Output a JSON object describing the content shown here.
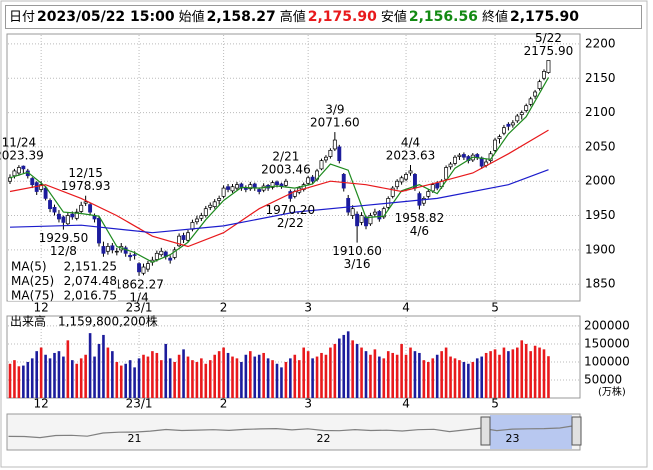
{
  "header": {
    "fields": [
      {
        "label": "日付",
        "value": "2023/05/22 15:00",
        "color": "#000000"
      },
      {
        "label": "始値",
        "value": "2,158.27",
        "color": "#000000"
      },
      {
        "label": "高値",
        "value": "2,175.90",
        "color": "#e8191c"
      },
      {
        "label": "安値",
        "value": "2,156.56",
        "color": "#138a13"
      },
      {
        "label": "終値",
        "value": "2,175.90",
        "color": "#000000"
      }
    ]
  },
  "chart_data": {
    "type": "candlestick",
    "categories": [
      null,
      null,
      null,
      null,
      null,
      null,
      null,
      "12",
      null,
      null,
      null,
      null,
      null,
      null,
      null,
      null,
      null,
      null,
      null,
      null,
      null,
      null,
      null,
      null,
      null,
      null,
      null,
      null,
      null,
      "23/1",
      null,
      null,
      null,
      null,
      null,
      null,
      null,
      null,
      null,
      null,
      null,
      null,
      null,
      null,
      null,
      null,
      null,
      null,
      "2",
      null,
      null,
      null,
      null,
      null,
      null,
      null,
      null,
      null,
      null,
      null,
      null,
      null,
      null,
      null,
      null,
      null,
      null,
      "3",
      null,
      null,
      null,
      null,
      null,
      null,
      null,
      null,
      null,
      null,
      null,
      null,
      null,
      null,
      null,
      null,
      null,
      null,
      null,
      null,
      null,
      "4",
      null,
      null,
      null,
      null,
      null,
      null,
      null,
      null,
      null,
      null,
      null,
      null,
      null,
      null,
      null,
      null,
      null,
      null,
      null,
      "5",
      null,
      null,
      null,
      null,
      null,
      null,
      null,
      null,
      null,
      null,
      null,
      null
    ],
    "open": [
      2000,
      2008,
      2012,
      2022,
      2015,
      2004,
      1998,
      1988,
      1990,
      1972,
      1962,
      1952,
      1948,
      1938,
      1952,
      1946,
      1956,
      1968,
      1966,
      1950,
      1946,
      1905,
      1898,
      1906,
      1897,
      1900,
      1903,
      1892,
      1893,
      1880,
      1866,
      1872,
      1882,
      1886,
      1893,
      1897,
      1888,
      1889,
      1906,
      1921,
      1914,
      1930,
      1941,
      1946,
      1950,
      1962,
      1963,
      1972,
      1978,
      1992,
      1986,
      1990,
      1996,
      1991,
      1989,
      1996,
      1988,
      1987,
      1994,
      1991,
      1999,
      1996,
      1994,
      1985,
      1978,
      1984,
      1988,
      1997,
      2006,
      2003,
      2018,
      2031,
      2036,
      2047,
      2050,
      2010,
      1975,
      1950,
      1952,
      1940,
      1948,
      1938,
      1952,
      1956,
      1948,
      1962,
      1978,
      1992,
      1999,
      2003,
      2012,
      2010,
      1982,
      1968,
      1978,
      1986,
      1997,
      1992,
      2003,
      2021,
      2026,
      2036,
      2039,
      2036,
      2031,
      2039,
      2034,
      2023,
      2030,
      2045,
      2062,
      2070,
      2083,
      2082,
      2088,
      2097,
      2103,
      2112,
      2124,
      2135,
      2150,
      2158.27
    ],
    "high": [
      2010,
      2018,
      2023.39,
      2023,
      2018,
      2006,
      2000,
      2000,
      1993,
      1975,
      1966,
      1958,
      1950,
      1955,
      1956,
      1960,
      1970,
      1978.93,
      1968,
      1953,
      1950,
      1912,
      1910,
      1910,
      1903,
      1910,
      1906,
      1896,
      1898,
      1882,
      1880,
      1884,
      1890,
      1899,
      1903,
      1899,
      1892,
      1904,
      1924,
      1925,
      1929,
      1944,
      1950,
      1954,
      1964,
      1969,
      1974,
      1979,
      1994,
      1996,
      1996,
      1999,
      1998,
      1994,
      1999,
      1998,
      1991,
      1997,
      1996,
      2001,
      2001,
      1998,
      2003.46,
      1988,
      1988,
      1993,
      1998,
      2008,
      2009,
      2018,
      2033,
      2038,
      2048,
      2071.6,
      2053,
      2012,
      1980,
      1965,
      1956,
      1955,
      1950,
      1954,
      1960,
      1958,
      1963,
      1978,
      1993,
      2003,
      2008,
      2013,
      2023.63,
      2012,
      1985,
      1978,
      1988,
      1998,
      2000,
      2003,
      2023,
      2028,
      2038,
      2041,
      2042,
      2038,
      2041,
      2041,
      2036,
      2032,
      2044,
      2063,
      2068,
      2082,
      2086,
      2089,
      2098,
      2103,
      2113,
      2123,
      2133,
      2148,
      2163,
      2175.9
    ],
    "low": [
      1996,
      2004,
      2008,
      2012,
      2004,
      1990,
      1980,
      1984,
      1972,
      1955,
      1950,
      1940,
      1929.5,
      1935,
      1944,
      1943,
      1952,
      1964,
      1950,
      1940,
      1905,
      1890,
      1893,
      1895,
      1892,
      1896,
      1890,
      1884,
      1886,
      1862.27,
      1863,
      1868,
      1877,
      1883,
      1890,
      1886,
      1880,
      1886,
      1904,
      1910,
      1911,
      1927,
      1937,
      1942,
      1947,
      1958,
      1960,
      1966,
      1975,
      1984,
      1983,
      1987,
      1986,
      1984,
      1986,
      1986,
      1981,
      1984,
      1986,
      1988,
      1991,
      1989,
      1991,
      1970.2,
      1975,
      1981,
      1985,
      1994,
      1996,
      2000,
      2016,
      2027,
      2033,
      2044,
      2026,
      1985,
      1950,
      1945,
      1910.6,
      1936,
      1930,
      1935,
      1948,
      1941,
      1945,
      1959,
      1975,
      1988,
      1995,
      2000,
      2008,
      1986,
      1958.82,
      1964,
      1975,
      1983,
      1987,
      1989,
      2001,
      2017,
      2023,
      2031,
      2031,
      2026,
      2028,
      2031,
      2018,
      2020,
      2027,
      2042,
      2055,
      2067,
      2074,
      2078,
      2085,
      2090,
      2100,
      2109,
      2120,
      2132,
      2147,
      2156.56
    ],
    "close": [
      2005,
      2015,
      2020,
      2018,
      2008,
      1995,
      1985,
      1995,
      1975,
      1960,
      1955,
      1945,
      1940,
      1950,
      1948,
      1955,
      1965,
      1970,
      1955,
      1945,
      1910,
      1895,
      1905,
      1900,
      1898,
      1905,
      1895,
      1890,
      1892,
      1868,
      1875,
      1880,
      1885,
      1895,
      1898,
      1890,
      1885,
      1900,
      1920,
      1915,
      1925,
      1940,
      1945,
      1950,
      1960,
      1965,
      1970,
      1975,
      1990,
      1988,
      1992,
      1995,
      1990,
      1988,
      1995,
      1990,
      1985,
      1993,
      1990,
      1998,
      1995,
      1993,
      2000,
      1975,
      1985,
      1990,
      1995,
      2005,
      2000,
      2015,
      2030,
      2035,
      2045,
      2060,
      2030,
      1990,
      1955,
      1960,
      1935,
      1950,
      1935,
      1950,
      1955,
      1945,
      1960,
      1975,
      1990,
      2000,
      2005,
      2010,
      2015,
      1990,
      1965,
      1975,
      1985,
      1995,
      1990,
      2000,
      2020,
      2025,
      2035,
      2038,
      2035,
      2030,
      2038,
      2035,
      2022,
      2028,
      2040,
      2060,
      2065,
      2078,
      2080,
      2085,
      2095,
      2100,
      2110,
      2120,
      2130,
      2145,
      2160,
      2175.9
    ],
    "up_color": "#ffffff",
    "down_color": "#1c1c9c",
    "ylim": [
      1827,
      2213
    ],
    "yticks": [
      1850,
      1900,
      1950,
      2000,
      2050,
      2100,
      2150,
      2200
    ],
    "grid": true,
    "annotations": [
      {
        "date": "11/24",
        "price": "2023.39"
      },
      {
        "date": "12/8",
        "price": "1929.50"
      },
      {
        "date": "12/15",
        "price": "1978.93"
      },
      {
        "date": "1/4",
        "price": "1862.27"
      },
      {
        "date": "2/21",
        "price": "2003.46"
      },
      {
        "date": "2/22",
        "price": "1970.20"
      },
      {
        "date": "3/9",
        "price": "2071.60"
      },
      {
        "date": "3/16",
        "price": "1910.60"
      },
      {
        "date": "4/4",
        "price": "2023.63"
      },
      {
        "date": "4/6",
        "price": "1958.82"
      },
      {
        "date": "5/22",
        "price": "2175.90"
      }
    ],
    "series": [
      {
        "name": "MA(5)",
        "color": "#1e8a1e",
        "legend_label": "2,151.25",
        "x": [
          0,
          4,
          8,
          12,
          16,
          20,
          24,
          28,
          32,
          36,
          40,
          44,
          48,
          52,
          56,
          60,
          64,
          68,
          72,
          76,
          80,
          84,
          88,
          92,
          96,
          100,
          104,
          108,
          112,
          116,
          121
        ],
        "values": [
          2005,
          2013,
          1992,
          1955,
          1953,
          1949,
          1905,
          1896,
          1882,
          1893,
          1911,
          1944,
          1972,
          1991,
          1990,
          1993,
          1990,
          1996,
          2025,
          2016,
          1947,
          1949,
          1986,
          1995,
          1982,
          2019,
          2035,
          2032,
          2069,
          2094,
          2151.25
        ]
      },
      {
        "name": "MA(25)",
        "color": "#e8191c",
        "legend_label": "2,074.48",
        "x": [
          0,
          8,
          16,
          24,
          32,
          40,
          48,
          56,
          64,
          72,
          80,
          88,
          96,
          104,
          112,
          121
        ],
        "values": [
          1985,
          1995,
          1975,
          1950,
          1920,
          1905,
          1925,
          1960,
          1985,
          2000,
          1995,
          1985,
          1998,
          2012,
          2040,
          2074.48
        ]
      },
      {
        "name": "MA(75)",
        "color": "#1c1ccc",
        "legend_label": "2,016.75",
        "x": [
          0,
          16,
          32,
          48,
          64,
          80,
          96,
          112,
          121
        ],
        "values": [
          1933,
          1936,
          1925,
          1935,
          1955,
          1965,
          1975,
          1995,
          2016.75
        ]
      }
    ],
    "volume": {
      "title": "出来高",
      "total_label": "1,159,800,200株",
      "unit": "(万株)",
      "up_color": "#e8191c",
      "down_color": "#1c1c9c",
      "ylim": [
        0,
        222000
      ],
      "yticks": [
        200000,
        150000,
        100000,
        50000
      ],
      "values": [
        95000,
        105000,
        88000,
        90000,
        100000,
        110000,
        130000,
        140000,
        120000,
        110000,
        125000,
        130000,
        115000,
        160000,
        105000,
        95000,
        110000,
        120000,
        180000,
        115000,
        150000,
        175000,
        140000,
        130000,
        100000,
        90000,
        95000,
        105000,
        85000,
        110000,
        120000,
        115000,
        130000,
        125000,
        105000,
        150000,
        110000,
        100000,
        120000,
        135000,
        115000,
        105000,
        100000,
        110000,
        95000,
        105000,
        120000,
        130000,
        140000,
        125000,
        115000,
        110000,
        100000,
        120000,
        130000,
        115000,
        120000,
        125000,
        110000,
        105000,
        95000,
        85000,
        100000,
        110000,
        120000,
        105000,
        140000,
        130000,
        110000,
        115000,
        125000,
        120000,
        140000,
        150000,
        165000,
        175000,
        185000,
        160000,
        150000,
        140000,
        130000,
        120000,
        135000,
        115000,
        110000,
        130000,
        125000,
        120000,
        150000,
        120000,
        140000,
        130000,
        125000,
        105000,
        100000,
        110000,
        120000,
        130000,
        140000,
        115000,
        110000,
        105000,
        100000,
        95000,
        100000,
        110000,
        115000,
        125000,
        130000,
        135000,
        120000,
        140000,
        130000,
        135000,
        140000,
        160000,
        150000,
        130000,
        145000,
        140000,
        135000,
        115980
      ]
    },
    "navigator": {
      "categories": [
        null,
        null,
        null,
        null,
        null,
        null,
        null,
        null,
        "21",
        null,
        null,
        null,
        null,
        null,
        null,
        null,
        null,
        null,
        null,
        null,
        "22",
        null,
        null,
        null,
        null,
        null,
        null,
        null,
        null,
        null,
        null,
        null,
        "23",
        null,
        null,
        null,
        null
      ],
      "values": [
        1563,
        1558,
        1496,
        1618,
        1625,
        1579,
        1754,
        1804,
        1808,
        1864,
        1954,
        1898,
        1922,
        1943,
        1901,
        1960,
        1986,
        2001,
        1928,
        1992,
        1895,
        1886,
        1946,
        1899,
        1912,
        1870,
        1940,
        1963,
        1835,
        1929,
        2034,
        1891,
        1975,
        1993,
        2003,
        2037,
        2175.9
      ],
      "ylim": [
        800,
        2600
      ],
      "color": "#808080"
    }
  }
}
